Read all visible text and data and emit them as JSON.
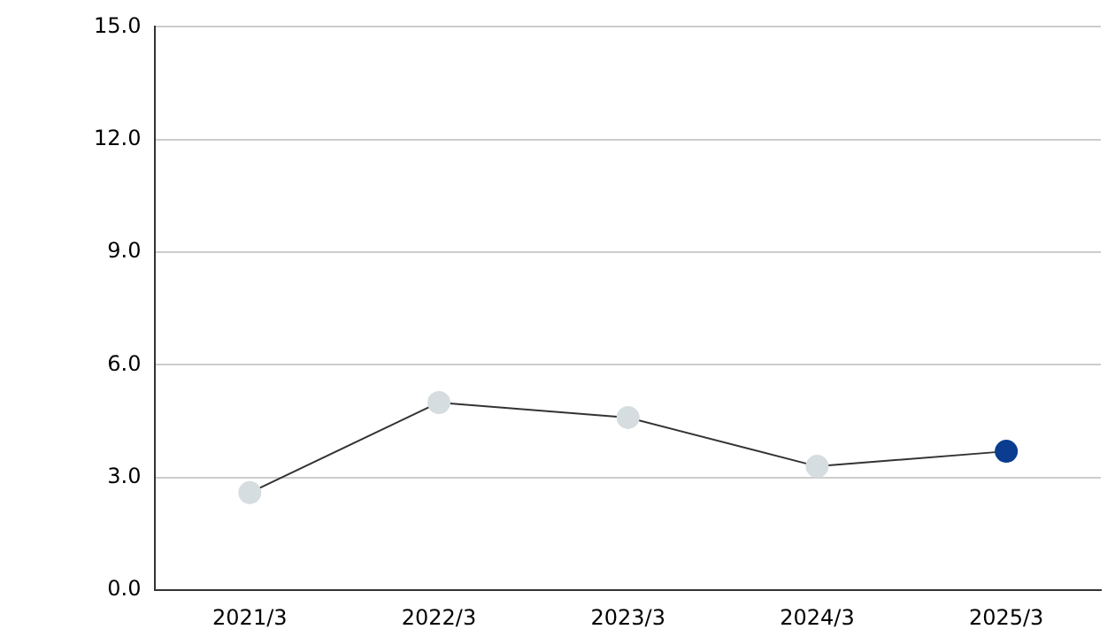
{
  "chart_data": {
    "type": "line",
    "categories": [
      "2021/3",
      "2022/3",
      "2023/3",
      "2024/3",
      "2025/3"
    ],
    "series": [
      {
        "color": "#333333",
        "colors": [
          "#d5dde0",
          "#d5dde0",
          "#d5dde0",
          "#d5dde0",
          "#0a3d8f"
        ],
        "values": [
          2.6,
          5.0,
          4.6,
          3.3,
          3.7
        ]
      }
    ],
    "ylim": [
      0,
      15
    ],
    "yticks": [
      {
        "value": 0,
        "label": "0.0"
      },
      {
        "value": 3,
        "label": "3.0"
      },
      {
        "value": 6,
        "label": "6.0"
      },
      {
        "value": 9,
        "label": "9.0"
      },
      {
        "value": 12,
        "label": "12.0"
      },
      {
        "value": 15,
        "label": "15.0"
      }
    ],
    "grid": "y",
    "marker": "circle",
    "legend": false
  }
}
